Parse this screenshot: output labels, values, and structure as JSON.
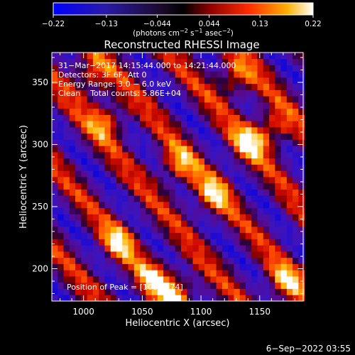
{
  "chart_data": {
    "type": "heatmap",
    "title": "Reconstructed RHESSI Image",
    "xlabel": "Heliocentric X (arcsec)",
    "ylabel": "Heliocentric Y (arcsec)",
    "xlim": [
      973,
      1187
    ],
    "ylim": [
      174,
      374
    ],
    "x_ticks": [
      "1000",
      "1050",
      "1100",
      "1150"
    ],
    "y_ticks": [
      "200",
      "250",
      "300",
      "350"
    ],
    "x_tick_values": [
      1000,
      1050,
      1100,
      1150
    ],
    "y_tick_values": [
      200,
      250,
      300,
      350
    ],
    "colorbar": {
      "label_html": "(photons cm<tspan baseline-shift=\"super\" font-size=\"8\">−2</tspan> s<tspan baseline-shift=\"super\" font-size=\"8\">−1</tspan> asec<tspan baseline-shift=\"super\" font-size=\"8\">−2</tspan>)",
      "min": -0.22,
      "max": 0.22,
      "ticks": [
        "−0.22",
        "−0.13",
        "−0.044",
        "0.044",
        "0.13",
        "0.22"
      ],
      "tick_values": [
        -0.22,
        -0.13,
        -0.044,
        0.044,
        0.13,
        0.22
      ]
    },
    "annotations": {
      "time_range": "31−Mar−2017 14:15:44.000 to 14:21:44.000",
      "detectors": "Detectors: 3F 6F, Att 0",
      "energy": "Energy Range: 3.0 − 6.0 keV",
      "clean": "Clean    Total counts: 5.86E+04",
      "peak": "Position of Peak = [1082,174]"
    },
    "bright_sources": [
      {
        "x": 1020,
        "y": 320
      },
      {
        "x": 1030,
        "y": 222
      },
      {
        "x": 1080,
        "y": 283
      },
      {
        "x": 1110,
        "y": 260
      },
      {
        "x": 1140,
        "y": 302
      },
      {
        "x": 1160,
        "y": 312
      },
      {
        "x": 1060,
        "y": 192
      },
      {
        "x": 1080,
        "y": 180
      },
      {
        "x": 1172,
        "y": 190
      },
      {
        "x": 1005,
        "y": 355
      },
      {
        "x": 1128,
        "y": 354
      }
    ]
  },
  "footer": {
    "date": "6−Sep−2022 03:55"
  }
}
